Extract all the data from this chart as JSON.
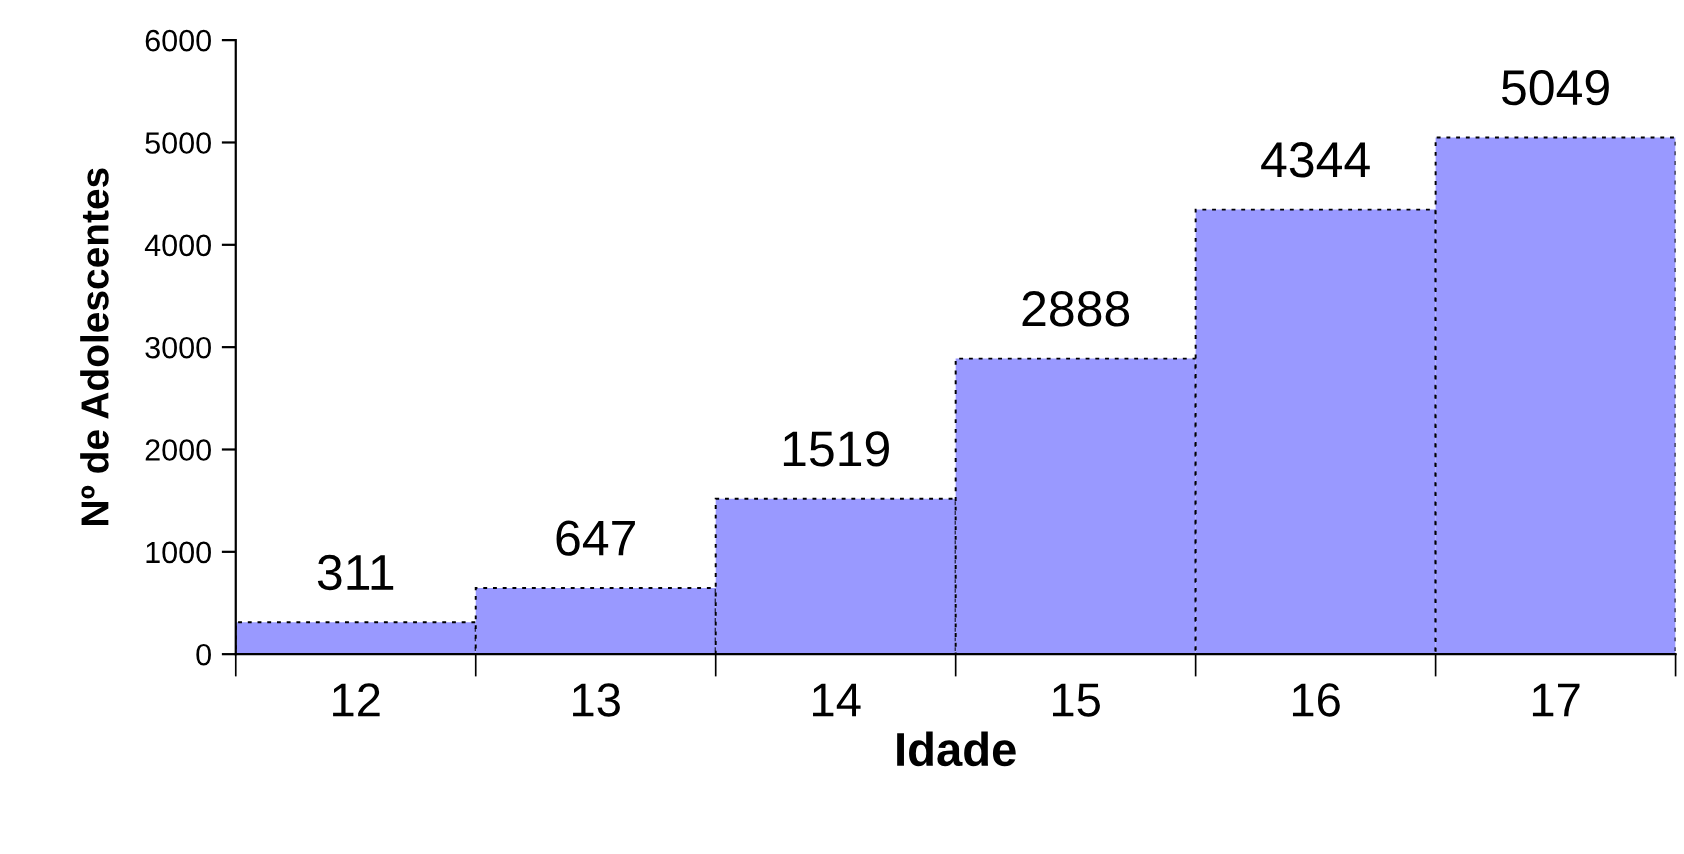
{
  "chart_data": {
    "type": "bar",
    "xlabel": "Idade",
    "ylabel": "Nº de Adolescentes",
    "categories": [
      "12",
      "13",
      "14",
      "15",
      "16",
      "17"
    ],
    "values": [
      311,
      647,
      1519,
      2888,
      4344,
      5049
    ],
    "color": "#9999ff",
    "ylim": [
      0,
      6000
    ],
    "yticks": [
      0,
      1000,
      2000,
      3000,
      4000,
      5000,
      6000
    ],
    "data_labels": true,
    "grid": false
  }
}
